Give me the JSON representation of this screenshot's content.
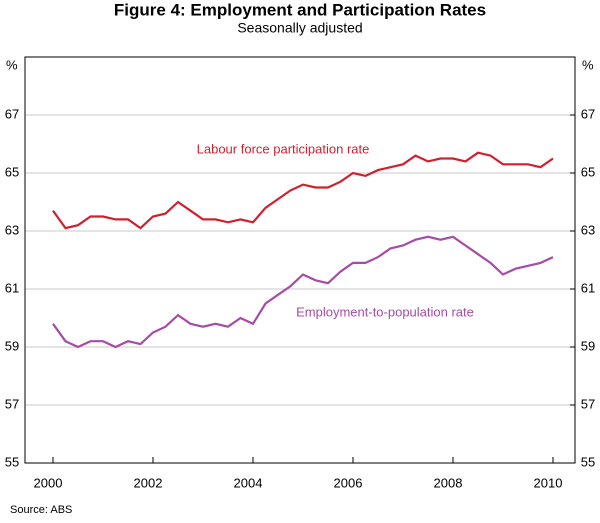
{
  "chart_data": {
    "type": "line",
    "title": "Figure 4: Employment and Participation Rates",
    "subtitle": "Seasonally adjusted",
    "y_unit": "%",
    "y2_unit": "%",
    "source": "Source: ABS",
    "x": [
      2000,
      2000.25,
      2000.5,
      2000.75,
      2001,
      2001.25,
      2001.5,
      2001.75,
      2002,
      2002.25,
      2002.5,
      2002.75,
      2003,
      2003.25,
      2003.5,
      2003.75,
      2004,
      2004.25,
      2004.5,
      2004.75,
      2005,
      2005.25,
      2005.5,
      2005.75,
      2006,
      2006.25,
      2006.5,
      2006.75,
      2007,
      2007.25,
      2007.5,
      2007.75,
      2008,
      2008.25,
      2008.5,
      2008.75,
      2009,
      2009.25,
      2009.5,
      2009.75,
      2010
    ],
    "series": [
      {
        "name": "Labour force participation rate",
        "color": "#d0202e",
        "values": [
          63.7,
          63.1,
          63.2,
          63.5,
          63.5,
          63.4,
          63.4,
          63.1,
          63.5,
          63.6,
          64.0,
          63.7,
          63.4,
          63.4,
          63.3,
          63.4,
          63.3,
          63.8,
          64.1,
          64.4,
          64.6,
          64.5,
          64.5,
          64.7,
          65.0,
          64.9,
          65.1,
          65.2,
          65.3,
          65.6,
          65.4,
          65.5,
          65.5,
          65.4,
          65.7,
          65.6,
          65.3,
          65.3,
          65.3,
          65.2,
          65.5
        ]
      },
      {
        "name": "Employment-to-population rate",
        "color": "#a64ca6",
        "values": [
          59.8,
          59.2,
          59.0,
          59.2,
          59.2,
          59.0,
          59.2,
          59.1,
          59.5,
          59.7,
          60.1,
          59.8,
          59.7,
          59.8,
          59.7,
          60.0,
          59.8,
          60.5,
          60.8,
          61.1,
          61.5,
          61.3,
          61.2,
          61.6,
          61.9,
          61.9,
          62.1,
          62.4,
          62.5,
          62.7,
          62.8,
          62.7,
          62.8,
          62.5,
          62.2,
          61.9,
          61.5,
          61.7,
          61.8,
          61.9,
          62.1
        ]
      }
    ],
    "xlim": [
      1999.44,
      2010.44
    ],
    "xticks": [
      2000,
      2002,
      2004,
      2006,
      2008,
      2010
    ],
    "ylim": [
      55,
      69
    ],
    "yticks": [
      55,
      57,
      59,
      61,
      63,
      65,
      67
    ],
    "y2lim": [
      55,
      69
    ],
    "y2ticks": [
      55,
      57,
      59,
      61,
      63,
      65,
      67
    ],
    "grid": true
  }
}
